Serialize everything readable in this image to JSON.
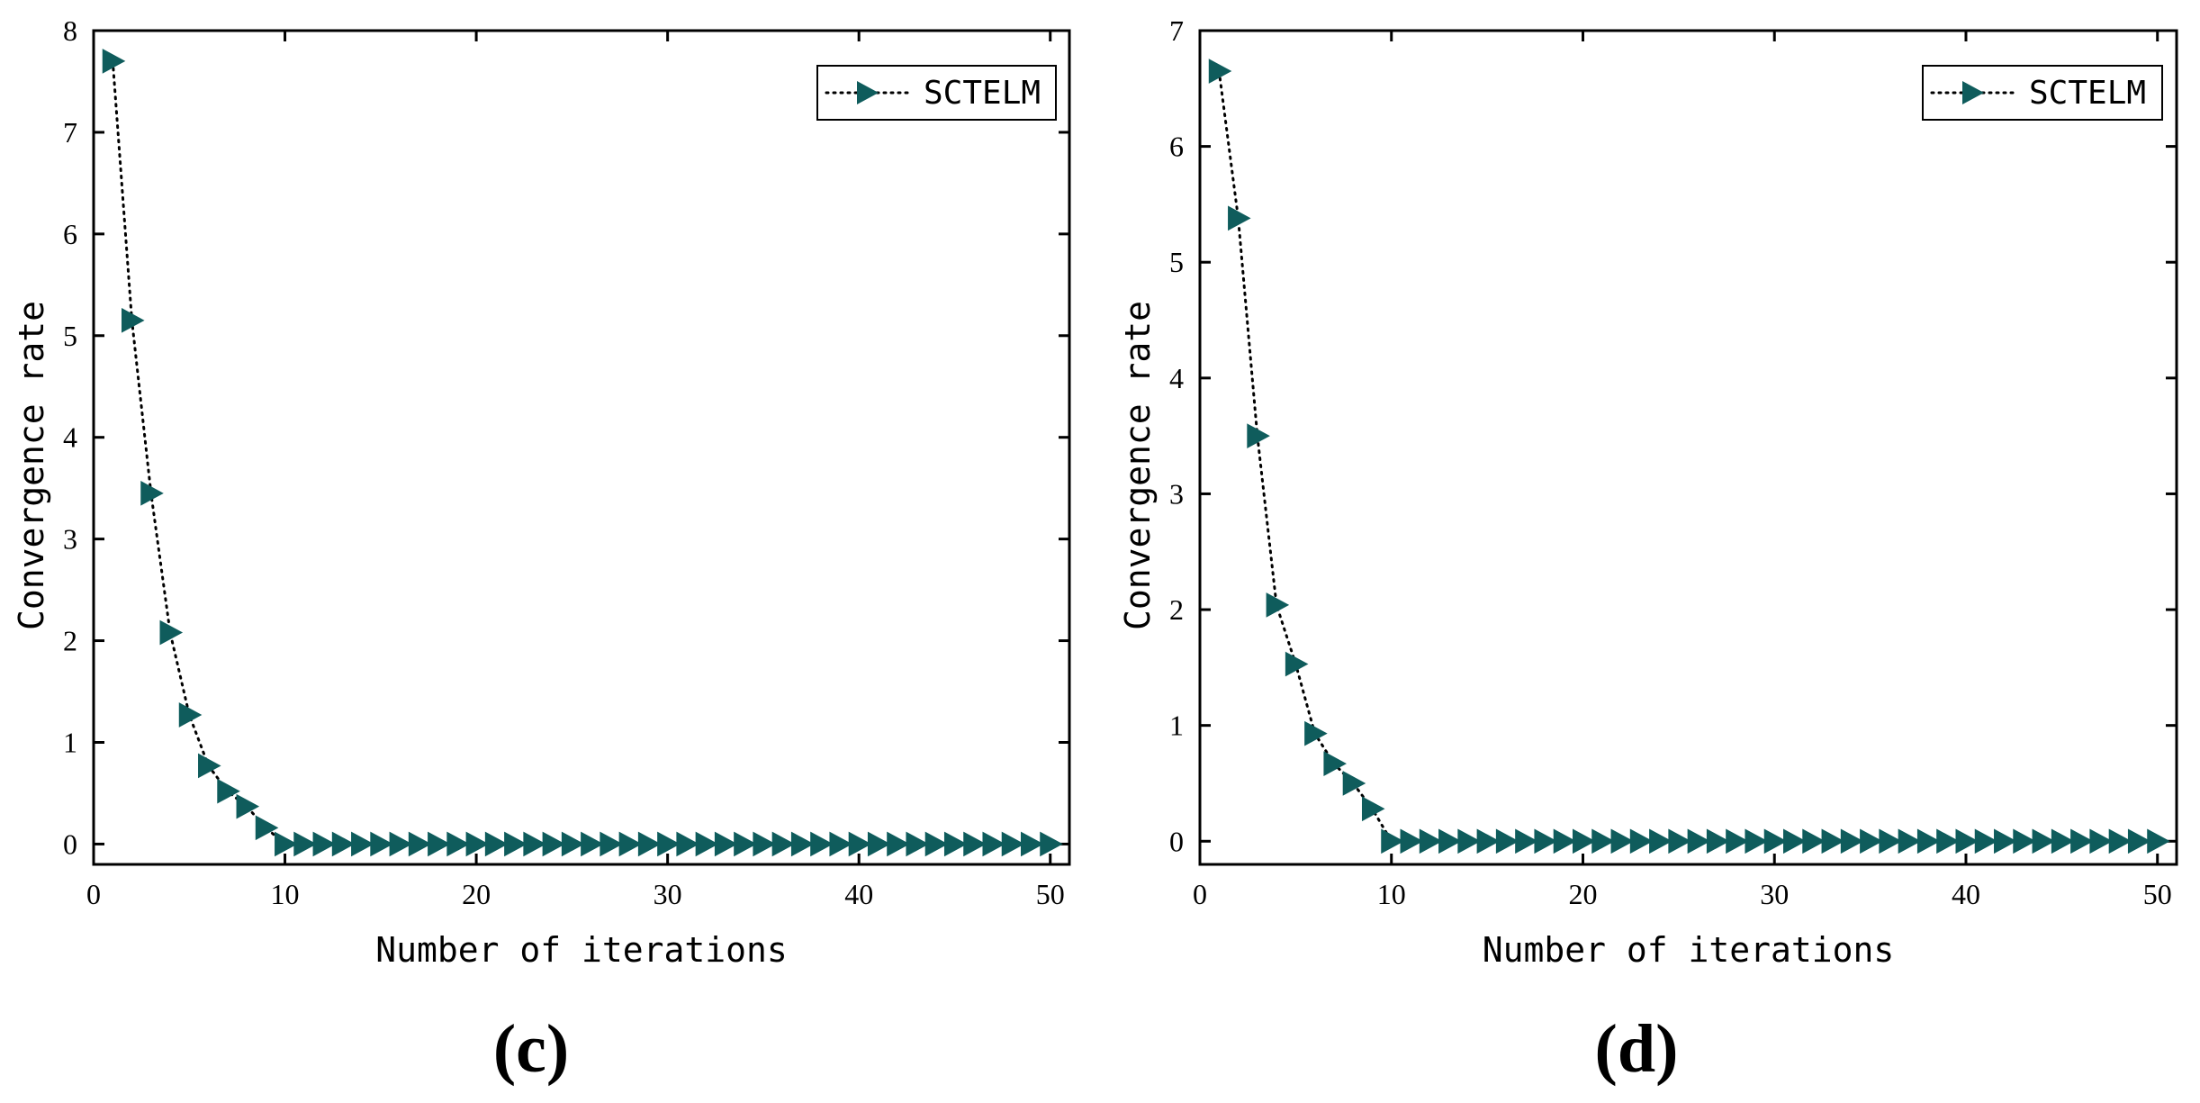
{
  "chart_data": [
    {
      "type": "line",
      "panel": "(c)",
      "xlabel": "Number of iterations",
      "ylabel": "Convergence rate",
      "xlim": [
        0,
        51
      ],
      "ylim": [
        -0.2,
        8
      ],
      "xticks": [
        0,
        10,
        20,
        30,
        40,
        50
      ],
      "yticks": [
        0,
        1,
        2,
        3,
        4,
        5,
        6,
        7,
        8
      ],
      "legend": "top-right",
      "marker_color": "#0f5c5c",
      "line_style": "dotted",
      "series": [
        {
          "name": "SCTELM",
          "x": [
            1,
            2,
            3,
            4,
            5,
            6,
            7,
            8,
            9,
            10,
            11,
            12,
            13,
            14,
            15,
            16,
            17,
            18,
            19,
            20,
            21,
            22,
            23,
            24,
            25,
            26,
            27,
            28,
            29,
            30,
            31,
            32,
            33,
            34,
            35,
            36,
            37,
            38,
            39,
            40,
            41,
            42,
            43,
            44,
            45,
            46,
            47,
            48,
            49,
            50
          ],
          "values": [
            7.7,
            5.15,
            3.45,
            2.08,
            1.27,
            0.77,
            0.52,
            0.37,
            0.16,
            0,
            0,
            0,
            0,
            0,
            0,
            0,
            0,
            0,
            0,
            0,
            0,
            0,
            0,
            0,
            0,
            0,
            0,
            0,
            0,
            0,
            0,
            0,
            0,
            0,
            0,
            0,
            0,
            0,
            0,
            0,
            0,
            0,
            0,
            0,
            0,
            0,
            0,
            0,
            0,
            0
          ]
        }
      ]
    },
    {
      "type": "line",
      "panel": "(d)",
      "xlabel": "Number of iterations",
      "ylabel": "Convergence rate",
      "xlim": [
        0,
        51
      ],
      "ylim": [
        -0.2,
        7
      ],
      "xticks": [
        0,
        10,
        20,
        30,
        40,
        50
      ],
      "yticks": [
        0,
        1,
        2,
        3,
        4,
        5,
        6,
        7
      ],
      "legend": "top-right",
      "marker_color": "#0f5c5c",
      "line_style": "dotted",
      "series": [
        {
          "name": "SCTELM",
          "x": [
            1,
            2,
            3,
            4,
            5,
            6,
            7,
            8,
            9,
            10,
            11,
            12,
            13,
            14,
            15,
            16,
            17,
            18,
            19,
            20,
            21,
            22,
            23,
            24,
            25,
            26,
            27,
            28,
            29,
            30,
            31,
            32,
            33,
            34,
            35,
            36,
            37,
            38,
            39,
            40,
            41,
            42,
            43,
            44,
            45,
            46,
            47,
            48,
            49,
            50
          ],
          "values": [
            6.65,
            5.38,
            3.5,
            2.04,
            1.53,
            0.93,
            0.67,
            0.5,
            0.28,
            0,
            0,
            0,
            0,
            0,
            0,
            0,
            0,
            0,
            0,
            0,
            0,
            0,
            0,
            0,
            0,
            0,
            0,
            0,
            0,
            0,
            0,
            0,
            0,
            0,
            0,
            0,
            0,
            0,
            0,
            0,
            0,
            0,
            0,
            0,
            0,
            0,
            0,
            0,
            0,
            0
          ]
        }
      ]
    }
  ]
}
